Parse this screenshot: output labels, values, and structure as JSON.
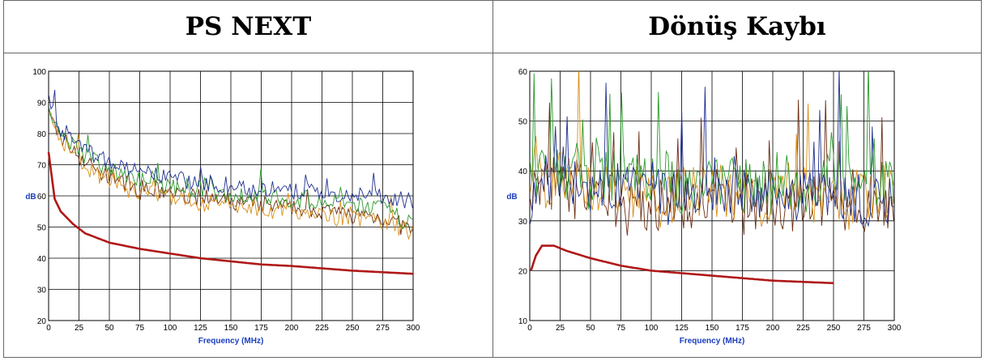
{
  "table": {
    "headers": [
      "PS NEXT",
      "Dönüş Kaybı"
    ]
  },
  "colors": {
    "limit": "#b01818",
    "series": [
      "#1f2f8f",
      "#2a9a2a",
      "#6b2e12",
      "#d89018"
    ],
    "grid": "#000000",
    "axis_label": "#1a3dbd"
  },
  "chart_data": [
    {
      "type": "line",
      "title": "PS NEXT",
      "xlabel": "Frequency (MHz)",
      "ylabel": "dB",
      "xlim": [
        0,
        300
      ],
      "ylim": [
        20,
        100
      ],
      "xticks": [
        0,
        25,
        50,
        75,
        100,
        125,
        150,
        175,
        200,
        225,
        250,
        275,
        300
      ],
      "yticks": [
        20,
        30,
        40,
        50,
        60,
        70,
        80,
        90,
        100
      ],
      "grid": true,
      "limit": {
        "x": [
          0,
          5,
          10,
          20,
          30,
          50,
          75,
          100,
          125,
          150,
          175,
          200,
          250,
          300
        ],
        "y": [
          74,
          59,
          55,
          51,
          48,
          45,
          43,
          41.5,
          40,
          39,
          38,
          37.5,
          36,
          35
        ]
      },
      "measured": {
        "x": [
          0,
          10,
          20,
          30,
          50,
          75,
          100,
          125,
          150,
          175,
          200,
          225,
          250,
          275,
          300
        ],
        "series": [
          {
            "y": [
              90,
              82,
              78,
              75,
              71,
              67,
              66,
              64,
              63,
              62,
              61,
              61,
              60,
              60,
              58
            ]
          },
          {
            "y": [
              87,
              80,
              76,
              73,
              69,
              65,
              63,
              62,
              60,
              60,
              59,
              58,
              57,
              56,
              51
            ]
          },
          {
            "y": [
              86,
              79,
              75,
              71,
              66,
              62,
              61,
              59,
              58,
              57,
              56,
              55,
              54,
              53,
              49
            ]
          },
          {
            "y": [
              85,
              78,
              74,
              70,
              65,
              61,
              60,
              58,
              57,
              56,
              55,
              54,
              53,
              52,
              48
            ]
          }
        ]
      }
    },
    {
      "type": "line",
      "title": "Dönüş Kaybı",
      "xlabel": "Frequency (MHz)",
      "ylabel": "dB",
      "xlim": [
        0,
        300
      ],
      "ylim": [
        10,
        60
      ],
      "xticks": [
        0,
        25,
        50,
        75,
        100,
        125,
        150,
        175,
        200,
        225,
        250,
        275,
        300
      ],
      "yticks": [
        10,
        20,
        30,
        40,
        50,
        60
      ],
      "grid": true,
      "limit": {
        "x": [
          1,
          5,
          10,
          15,
          20,
          30,
          50,
          75,
          100,
          125,
          150,
          200,
          250
        ],
        "y": [
          20,
          23,
          25,
          25,
          25,
          24,
          22.5,
          21,
          20,
          19.5,
          19,
          18,
          17.5
        ]
      },
      "measured": {
        "x": [
          0,
          10,
          20,
          30,
          40,
          50,
          75,
          100,
          125,
          150,
          175,
          200,
          225,
          250,
          275,
          300
        ],
        "series": [
          {
            "y": [
              35,
              40,
              38,
              37,
              39,
              36,
              37,
              36,
              35,
              37,
              36,
              36,
              35,
              36,
              34,
              33
            ]
          },
          {
            "y": [
              38,
              42,
              40,
              39,
              41,
              38,
              39,
              38,
              37,
              39,
              38,
              38,
              37,
              38,
              36,
              38
            ]
          },
          {
            "y": [
              34,
              37,
              36,
              35,
              37,
              35,
              34,
              33,
              34,
              35,
              34,
              33,
              34,
              35,
              33,
              34
            ]
          },
          {
            "y": [
              36,
              39,
              37,
              38,
              38,
              36,
              36,
              35,
              36,
              36,
              35,
              35,
              36,
              34,
              35,
              35
            ]
          }
        ]
      }
    }
  ]
}
